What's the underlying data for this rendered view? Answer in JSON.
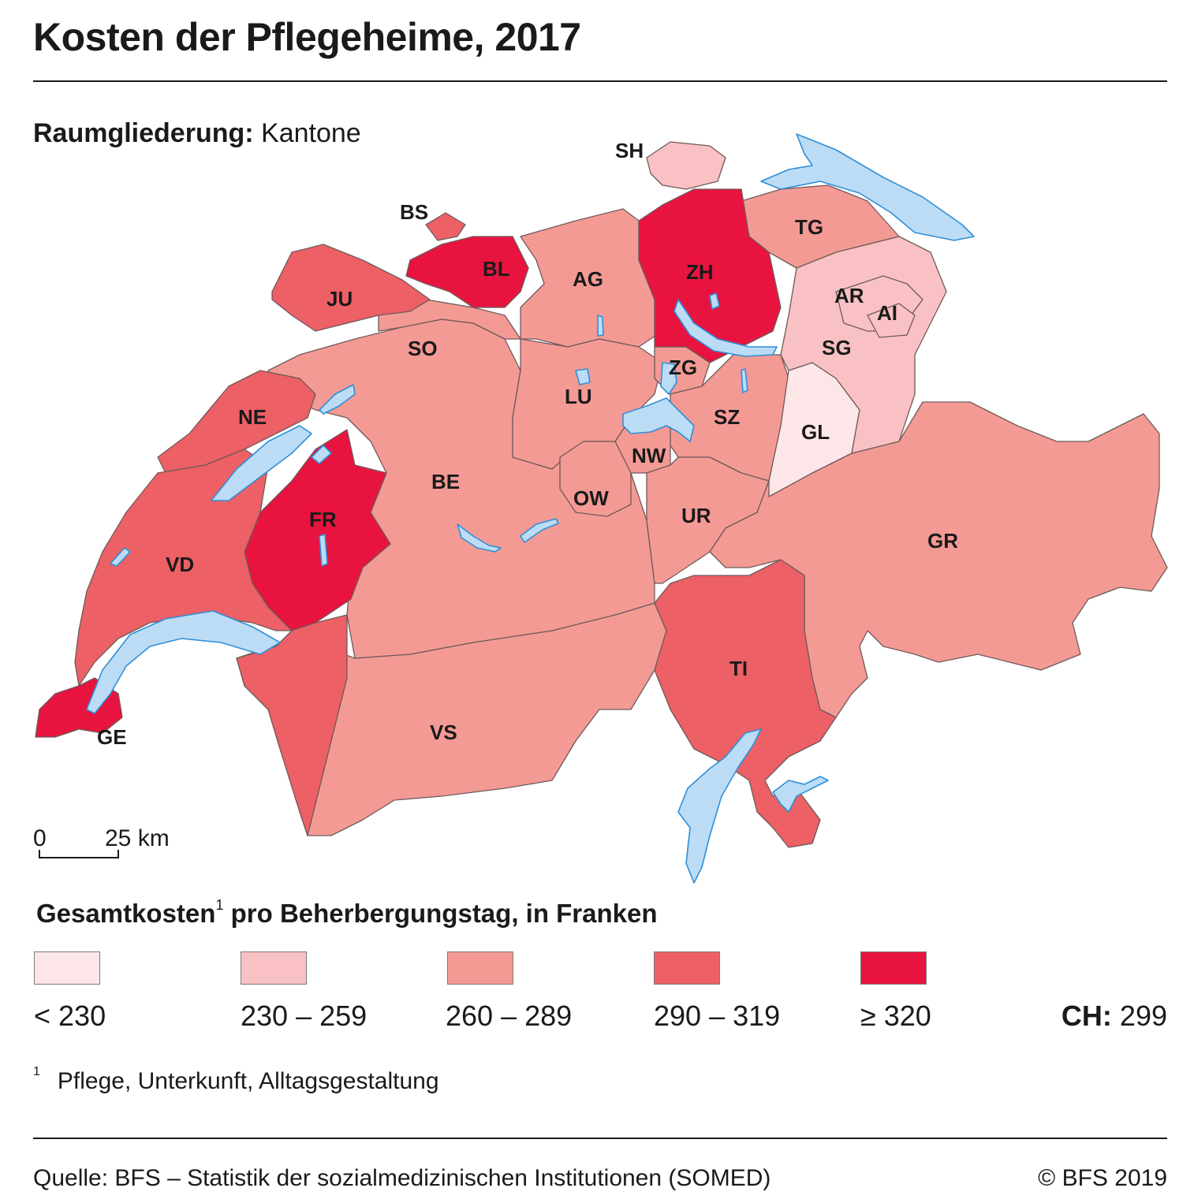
{
  "header": {
    "title": "Kosten der Pflegeheime, 2017"
  },
  "subtitle": {
    "label": "Raumgliederung:",
    "value": "Kantone"
  },
  "scale_bar": {
    "start": "0",
    "end": "25 km"
  },
  "legend": {
    "title": "Gesamtkosten",
    "footnote_mark": "1",
    "title_rest": " pro Beherbergungstag, in Franken",
    "classes": [
      {
        "label": "< 230",
        "color": "#fde6e8"
      },
      {
        "label": "230 – 259",
        "color": "#f9c1c3"
      },
      {
        "label": "260 – 289",
        "color": "#f49a95"
      },
      {
        "label": "290 – 319",
        "color": "#ec6066"
      },
      {
        "label": "≥ 320",
        "color": "#e8143f"
      }
    ],
    "ch_label": "CH:",
    "ch_value": "299"
  },
  "footnote": {
    "mark": "1",
    "text": "Pflege, Unterkunft, Alltagsgestaltung"
  },
  "source": "Quelle: BFS – Statistik der sozialmedizinischen Institutionen (SOMED)",
  "copyright": "© BFS 2019",
  "colors": {
    "lake": "#bcdcf5",
    "lake_stroke": "#2e8fd8",
    "border": "#6e5a5a"
  },
  "cantons": [
    {
      "code": "SH",
      "cls": 1
    },
    {
      "code": "BS",
      "cls": 3
    },
    {
      "code": "TG",
      "cls": 2
    },
    {
      "code": "BL",
      "cls": 4
    },
    {
      "code": "AG",
      "cls": 2
    },
    {
      "code": "ZH",
      "cls": 4
    },
    {
      "code": "JU",
      "cls": 3
    },
    {
      "code": "AR",
      "cls": 1
    },
    {
      "code": "AI",
      "cls": 1
    },
    {
      "code": "SO",
      "cls": 2
    },
    {
      "code": "SG",
      "cls": 1
    },
    {
      "code": "ZG",
      "cls": 2
    },
    {
      "code": "LU",
      "cls": 2
    },
    {
      "code": "NE",
      "cls": 3
    },
    {
      "code": "SZ",
      "cls": 2
    },
    {
      "code": "GL",
      "cls": 0
    },
    {
      "code": "NW",
      "cls": 2
    },
    {
      "code": "BE",
      "cls": 2
    },
    {
      "code": "OW",
      "cls": 2
    },
    {
      "code": "FR",
      "cls": 4
    },
    {
      "code": "UR",
      "cls": 2
    },
    {
      "code": "GR",
      "cls": 2
    },
    {
      "code": "VD",
      "cls": 3
    },
    {
      "code": "TI",
      "cls": 3
    },
    {
      "code": "VS",
      "cls": 2
    },
    {
      "code": "GE",
      "cls": 4
    }
  ]
}
